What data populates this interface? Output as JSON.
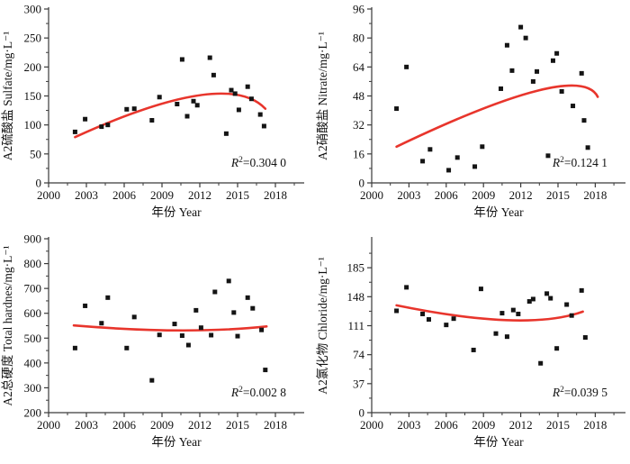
{
  "figure_title": "",
  "colors": {
    "trend_line": "#e8352c",
    "marker": "#141414",
    "axis": "#3a3a3a",
    "text": "#111111",
    "background": "#ffffff"
  },
  "chart_data": [
    {
      "type": "scatter",
      "id": "sulfate",
      "ylabel": "A2硫酸盐 Sulfate/mg·L⁻¹",
      "xlabel": "年份 Year",
      "annotation": "R²=0.304 0",
      "xlim": [
        2000,
        2020.3
      ],
      "ylim": [
        0,
        300
      ],
      "xticks": [
        2000,
        2003,
        2006,
        2009,
        2012,
        2015,
        2018
      ],
      "yticks": [
        0,
        50,
        100,
        150,
        200,
        250,
        300
      ],
      "grid": false,
      "legend": null,
      "series": [
        {
          "name": "observations",
          "marker": "square",
          "points": [
            [
              2002.1,
              88
            ],
            [
              2002.9,
              110
            ],
            [
              2004.2,
              97
            ],
            [
              2004.7,
              100
            ],
            [
              2006.2,
              127
            ],
            [
              2006.8,
              128
            ],
            [
              2008.2,
              108
            ],
            [
              2008.8,
              148
            ],
            [
              2010.2,
              136
            ],
            [
              2010.6,
              213
            ],
            [
              2011.0,
              115
            ],
            [
              2011.5,
              141
            ],
            [
              2011.8,
              134
            ],
            [
              2012.8,
              216
            ],
            [
              2013.1,
              186
            ],
            [
              2014.1,
              85
            ],
            [
              2014.5,
              160
            ],
            [
              2014.8,
              154
            ],
            [
              2015.1,
              126
            ],
            [
              2015.8,
              166
            ],
            [
              2016.1,
              145
            ],
            [
              2016.8,
              118
            ],
            [
              2017.1,
              98
            ]
          ]
        }
      ],
      "trend": {
        "type": "quadratic",
        "start": [
          2002.1,
          79
        ],
        "vertex": [
          2011.9,
          151
        ],
        "end": [
          2017.2,
          128
        ]
      }
    },
    {
      "type": "scatter",
      "id": "nitrate",
      "ylabel": "A2硝酸盐 Nitrate/mg·L⁻¹",
      "xlabel": "年份 Year",
      "annotation": "R²=0.124 1",
      "xlim": [
        2000,
        2020.4
      ],
      "ylim": [
        0,
        96
      ],
      "xticks": [
        2000,
        2003,
        2006,
        2009,
        2012,
        2015,
        2018
      ],
      "yticks": [
        0,
        16,
        32,
        48,
        64,
        80,
        96
      ],
      "grid": false,
      "legend": null,
      "series": [
        {
          "name": "observations",
          "marker": "square",
          "points": [
            [
              2002.0,
              41
            ],
            [
              2002.8,
              64
            ],
            [
              2004.1,
              12
            ],
            [
              2004.7,
              18.5
            ],
            [
              2006.2,
              7
            ],
            [
              2006.9,
              14
            ],
            [
              2008.3,
              9
            ],
            [
              2008.9,
              20
            ],
            [
              2010.4,
              52
            ],
            [
              2010.9,
              76
            ],
            [
              2011.3,
              62
            ],
            [
              2012.0,
              86
            ],
            [
              2012.4,
              80
            ],
            [
              2013.0,
              56
            ],
            [
              2013.3,
              61.5
            ],
            [
              2014.2,
              15
            ],
            [
              2014.6,
              67.5
            ],
            [
              2014.9,
              71.5
            ],
            [
              2015.3,
              50.5
            ],
            [
              2016.2,
              42.5
            ],
            [
              2016.9,
              60.5
            ],
            [
              2017.1,
              34.5
            ],
            [
              2017.4,
              19.5
            ]
          ]
        }
      ],
      "trend": {
        "type": "quadratic",
        "start": [
          2002.0,
          20
        ],
        "vertex": [
          2013.4,
          51
        ],
        "end": [
          2018.2,
          47.5
        ]
      }
    },
    {
      "type": "scatter",
      "id": "total-hardness",
      "ylabel": "A2总硬度 Total hardnes/mg·L⁻¹",
      "xlabel": "年份 Year",
      "annotation": "R²=0.002 8",
      "xlim": [
        2000,
        2020.3
      ],
      "ylim": [
        200,
        900
      ],
      "xticks": [
        2000,
        2003,
        2006,
        2009,
        2012,
        2015,
        2018
      ],
      "yticks": [
        200,
        300,
        400,
        500,
        600,
        700,
        800,
        900
      ],
      "grid": false,
      "legend": null,
      "series": [
        {
          "name": "observations",
          "marker": "square",
          "points": [
            [
              2002.1,
              460
            ],
            [
              2002.9,
              630
            ],
            [
              2004.2,
              560
            ],
            [
              2004.7,
              663
            ],
            [
              2006.2,
              460
            ],
            [
              2006.8,
              585
            ],
            [
              2008.2,
              330
            ],
            [
              2008.8,
              513
            ],
            [
              2010.0,
              557
            ],
            [
              2010.6,
              510
            ],
            [
              2011.1,
              472
            ],
            [
              2011.7,
              612
            ],
            [
              2012.1,
              542
            ],
            [
              2012.9,
              512
            ],
            [
              2013.2,
              686
            ],
            [
              2014.3,
              730
            ],
            [
              2014.7,
              603
            ],
            [
              2015.0,
              508
            ],
            [
              2015.8,
              663
            ],
            [
              2016.2,
              620
            ],
            [
              2016.9,
              533
            ],
            [
              2017.2,
              372
            ]
          ]
        }
      ],
      "trend": {
        "type": "quadratic",
        "start": [
          2002.0,
          551
        ],
        "vertex": [
          2010.3,
          531
        ],
        "end": [
          2017.3,
          547
        ]
      }
    },
    {
      "type": "scatter",
      "id": "chloride",
      "ylabel": "A2氯化物 Chloride/mg·L⁻¹",
      "xlabel": "年份 Year",
      "annotation": "R²=0.039 5",
      "xlim": [
        2000,
        2020.4
      ],
      "ylim": [
        0,
        222
      ],
      "xticks": [
        2000,
        2003,
        2006,
        2009,
        2012,
        2015,
        2018
      ],
      "yticks": [
        0,
        37,
        74,
        111,
        148,
        185
      ],
      "grid": false,
      "legend": null,
      "series": [
        {
          "name": "observations",
          "marker": "square",
          "points": [
            [
              2002.0,
              130
            ],
            [
              2002.8,
              160
            ],
            [
              2004.1,
              126
            ],
            [
              2004.6,
              119
            ],
            [
              2006.0,
              112
            ],
            [
              2006.6,
              120
            ],
            [
              2008.2,
              80
            ],
            [
              2008.8,
              158
            ],
            [
              2010.0,
              101
            ],
            [
              2010.5,
              127
            ],
            [
              2010.9,
              97
            ],
            [
              2011.4,
              131
            ],
            [
              2011.8,
              126
            ],
            [
              2012.7,
              142
            ],
            [
              2013.0,
              145
            ],
            [
              2013.6,
              63
            ],
            [
              2014.1,
              152
            ],
            [
              2014.4,
              146
            ],
            [
              2014.9,
              82
            ],
            [
              2015.7,
              138
            ],
            [
              2016.1,
              124
            ],
            [
              2016.9,
              156
            ],
            [
              2017.2,
              96
            ]
          ]
        }
      ],
      "trend": {
        "type": "quadratic",
        "start": [
          2002.0,
          137
        ],
        "vertex": [
          2011.0,
          118
        ],
        "end": [
          2017.0,
          129
        ]
      }
    }
  ]
}
